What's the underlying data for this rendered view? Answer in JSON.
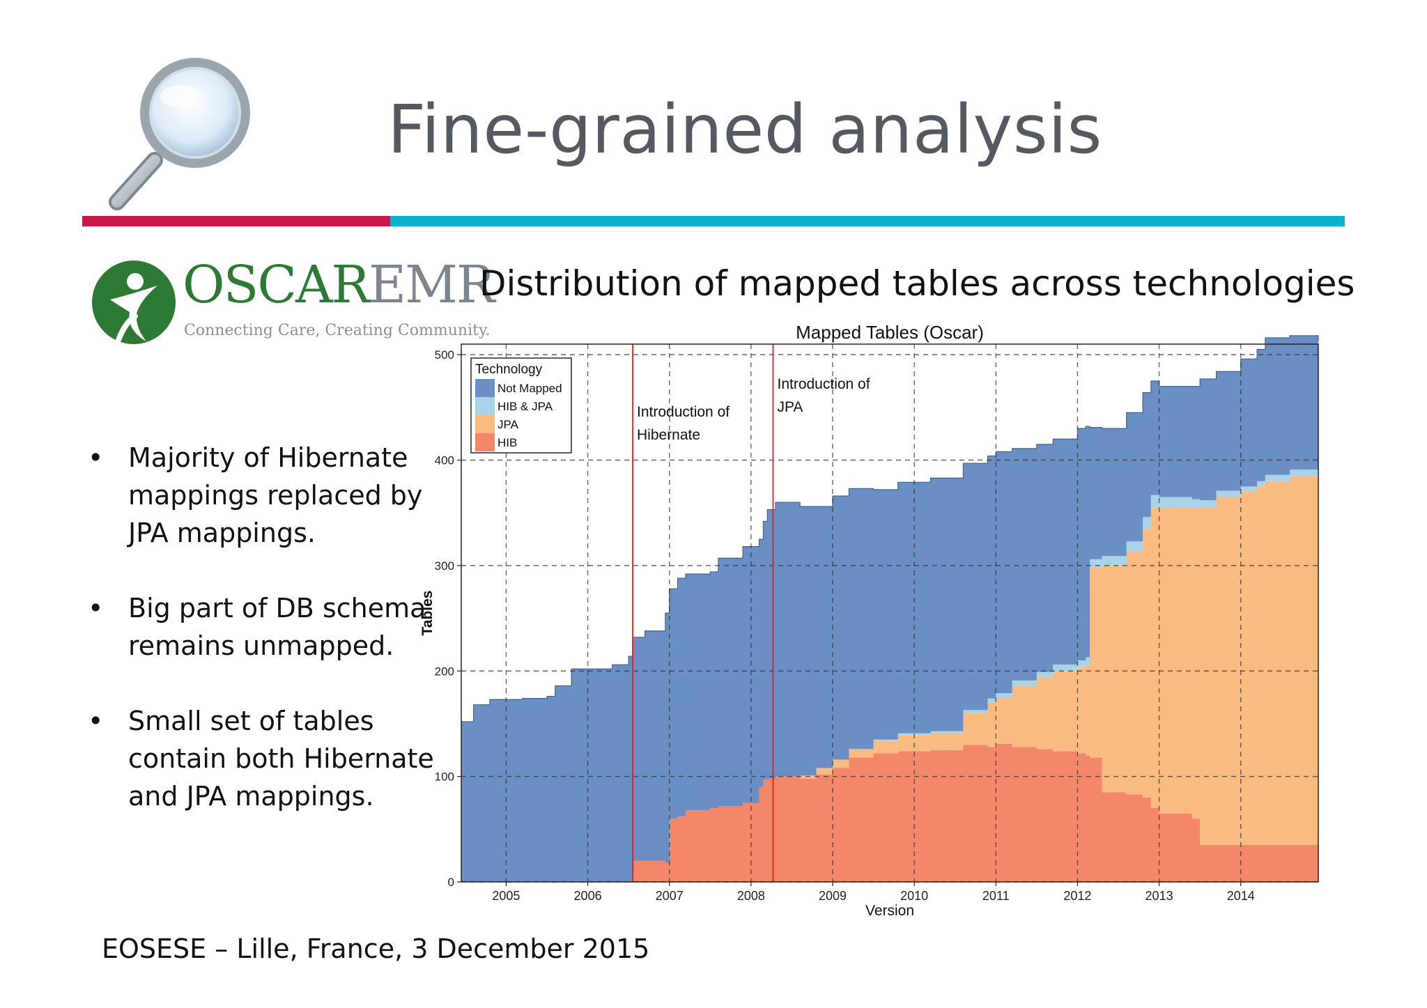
{
  "slide": {
    "title": "Fine-grained analysis",
    "chart_heading": "Distribution of mapped tables across technologies",
    "logo": {
      "name_part1": "OSCAR",
      "name_part2": "EMR",
      "tagline": "Connecting Care, Creating Community."
    },
    "bullets": [
      {
        "text": "Majority of Hibernate mappings replaced by JPA mappings."
      },
      {
        "text": "Big part of DB schema remains unmapped."
      },
      {
        "text": "Small set of tables contain both Hibernate and JPA mappings."
      }
    ],
    "bullet_glyph": "•",
    "footer": "EOSESE – Lille, France,  3 December 2015",
    "colors": {
      "red_rule": "#c8194b",
      "teal_rule": "#0ab3cc",
      "logo_green": "#2d7a35"
    }
  },
  "chart_data": {
    "type": "area",
    "stacked": true,
    "title": "Mapped Tables (Oscar)",
    "xlabel": "Version",
    "ylabel": "Tables",
    "xlim": [
      2004.45,
      2014.95
    ],
    "ylim": [
      0,
      510
    ],
    "x_ticks": [
      2005,
      2006,
      2007,
      2008,
      2009,
      2010,
      2011,
      2012,
      2013,
      2014
    ],
    "y_ticks": [
      0,
      100,
      200,
      300,
      400,
      500
    ],
    "grid": "dashed",
    "legend": {
      "title": "Technology",
      "placement": "top-left",
      "entries": [
        "Not Mapped",
        "HIB & JPA",
        "JPA",
        "HIB"
      ]
    },
    "x": [
      2004.45,
      2004.6,
      2004.8,
      2005.2,
      2005.5,
      2005.6,
      2005.8,
      2006.2,
      2006.3,
      2006.5,
      2006.55,
      2006.7,
      2006.95,
      2007.0,
      2007.1,
      2007.2,
      2007.5,
      2007.6,
      2007.9,
      2008.1,
      2008.15,
      2008.2,
      2008.3,
      2008.6,
      2008.8,
      2009.0,
      2009.2,
      2009.5,
      2009.8,
      2010.2,
      2010.6,
      2010.9,
      2011.0,
      2011.2,
      2011.5,
      2011.7,
      2012.0,
      2012.1,
      2012.15,
      2012.3,
      2012.6,
      2012.8,
      2012.9,
      2013.0,
      2013.4,
      2013.5,
      2013.7,
      2014.0,
      2014.2,
      2014.3,
      2014.6,
      2014.95
    ],
    "series": [
      {
        "name": "HIB",
        "color": "#f4876a",
        "values": [
          0,
          0,
          0,
          0,
          0,
          0,
          0,
          0,
          0,
          0,
          20,
          20,
          18,
          60,
          62,
          68,
          70,
          72,
          75,
          90,
          97,
          98,
          100,
          98,
          102,
          108,
          118,
          122,
          124,
          125,
          130,
          128,
          131,
          128,
          126,
          124,
          122,
          120,
          118,
          85,
          83,
          80,
          70,
          65,
          60,
          35,
          35,
          35,
          35,
          35,
          35,
          35
        ]
      },
      {
        "name": "JPA",
        "color": "#f9bb80",
        "values": [
          0,
          0,
          0,
          0,
          0,
          0,
          0,
          0,
          0,
          0,
          0,
          0,
          0,
          0,
          0,
          0,
          0,
          0,
          0,
          0,
          0,
          0,
          0,
          3,
          6,
          8,
          8,
          12,
          15,
          16,
          30,
          42,
          44,
          58,
          68,
          76,
          82,
          85,
          180,
          215,
          230,
          255,
          285,
          290,
          295,
          320,
          330,
          335,
          340,
          345,
          350,
          357
        ]
      },
      {
        "name": "HIB & JPA",
        "color": "#a9d4e8",
        "values": [
          0,
          0,
          0,
          0,
          0,
          0,
          0,
          0,
          0,
          0,
          0,
          0,
          0,
          0,
          0,
          0,
          0,
          0,
          0,
          0,
          0,
          0,
          0,
          0,
          0,
          0,
          0,
          1,
          2,
          2,
          3,
          4,
          4,
          5,
          5,
          6,
          6,
          8,
          8,
          9,
          10,
          11,
          12,
          10,
          8,
          7,
          6,
          5,
          5,
          6,
          6,
          6
        ]
      },
      {
        "name": "Not Mapped",
        "color": "#6a8fc4",
        "values": [
          152,
          168,
          173,
          174,
          176,
          186,
          202,
          202,
          206,
          214,
          212,
          218,
          237,
          218,
          226,
          224,
          224,
          235,
          243,
          235,
          245,
          255,
          260,
          255,
          248,
          250,
          247,
          237,
          238,
          240,
          234,
          230,
          229,
          220,
          216,
          214,
          220,
          219,
          125,
          121,
          122,
          118,
          108,
          105,
          107,
          115,
          113,
          121,
          125,
          130,
          127,
          115
        ]
      }
    ],
    "annotations": [
      {
        "x": 2006.55,
        "text_lines": [
          "Introduction of",
          "Hibernate"
        ],
        "color": "#e0201a"
      },
      {
        "x": 2008.27,
        "text_lines": [
          "Introduction of",
          "JPA"
        ],
        "color": "#e0201a"
      }
    ]
  }
}
